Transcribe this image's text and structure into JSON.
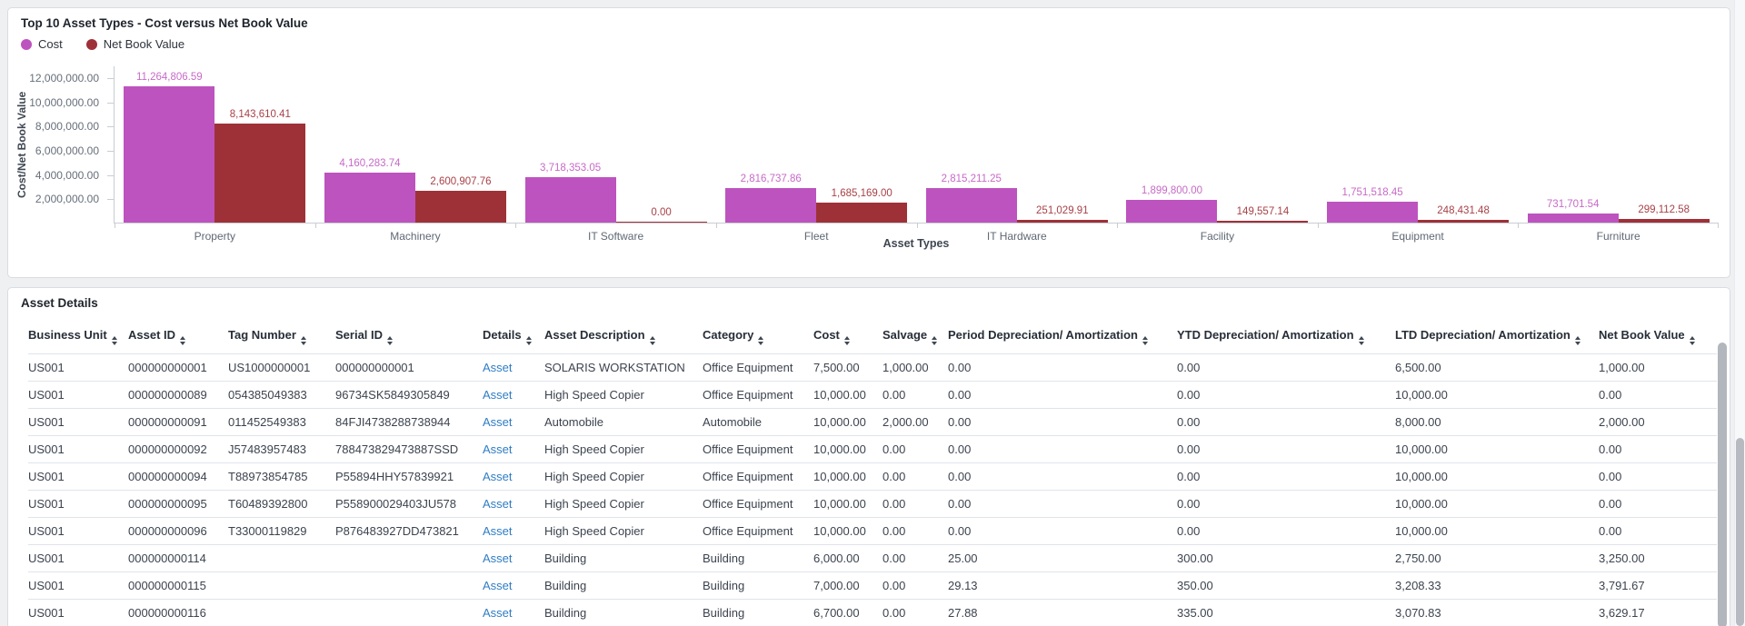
{
  "chart_data": {
    "type": "bar",
    "title": "Top 10 Asset Types - Cost versus Net Book Value",
    "xlabel": "Asset Types",
    "ylabel": "Cost/Net Book Value",
    "categories": [
      "Property",
      "Machinery",
      "IT Software",
      "Fleet",
      "IT Hardware",
      "Facility",
      "Equipment",
      "Furniture"
    ],
    "series": [
      {
        "name": "Cost",
        "color": "#bd53be",
        "label_color": "#c76ac7",
        "values": [
          11264806.59,
          4160283.74,
          3718353.05,
          2816737.86,
          2815211.25,
          1899800.0,
          1751518.45,
          731701.54
        ],
        "labels": [
          "11,264,806.59",
          "4,160,283.74",
          "3,718,353.05",
          "2,816,737.86",
          "2,815,211.25",
          "1,899,800.00",
          "1,751,518.45",
          "731,701.54"
        ]
      },
      {
        "name": "Net Book Value",
        "color": "#9e3138",
        "label_color": "#a84147",
        "values": [
          8143610.41,
          2600907.76,
          0.0,
          1685169.0,
          251029.91,
          149557.14,
          248431.48,
          299112.58
        ],
        "labels": [
          "8,143,610.41",
          "2,600,907.76",
          "0.00",
          "1,685,169.00",
          "251,029.91",
          "149,557.14",
          "248,431.48",
          "299,112.58"
        ]
      }
    ],
    "ylim": [
      0,
      12000000
    ],
    "yticks": [
      2000000,
      4000000,
      6000000,
      8000000,
      10000000,
      12000000
    ],
    "ytick_labels": [
      "2,000,000.00",
      "4,000,000.00",
      "6,000,000.00",
      "8,000,000.00",
      "10,000,000.00",
      "12,000,000.00"
    ],
    "grid": false,
    "legend_position": "top-left"
  },
  "table": {
    "title": "Asset Details",
    "columns": [
      "Business Unit",
      "Asset ID",
      "Tag Number",
      "Serial ID",
      "Details",
      "Asset Description",
      "Category",
      "Cost",
      "Salvage",
      "Period Depreciation/ Amortization",
      "YTD Depreciation/ Amortization",
      "LTD Depreciation/ Amortization",
      "Net Book Value"
    ],
    "rows": [
      [
        "US001",
        "000000000001",
        "US1000000001",
        "000000000001",
        "Asset",
        "SOLARIS WORKSTATION",
        "Office Equipment",
        "7,500.00",
        "1,000.00",
        "0.00",
        "0.00",
        "6,500.00",
        "1,000.00"
      ],
      [
        "US001",
        "000000000089",
        "054385049383",
        "96734SK5849305849",
        "Asset",
        "High Speed Copier",
        "Office Equipment",
        "10,000.00",
        "0.00",
        "0.00",
        "0.00",
        "10,000.00",
        "0.00"
      ],
      [
        "US001",
        "000000000091",
        "011452549383",
        "84FJI4738288738944",
        "Asset",
        "Automobile",
        "Automobile",
        "10,000.00",
        "2,000.00",
        "0.00",
        "0.00",
        "8,000.00",
        "2,000.00"
      ],
      [
        "US001",
        "000000000092",
        "J57483957483",
        "788473829473887SSD",
        "Asset",
        "High Speed Copier",
        "Office Equipment",
        "10,000.00",
        "0.00",
        "0.00",
        "0.00",
        "10,000.00",
        "0.00"
      ],
      [
        "US001",
        "000000000094",
        "T88973854785",
        "P55894HHY57839921",
        "Asset",
        "High Speed Copier",
        "Office Equipment",
        "10,000.00",
        "0.00",
        "0.00",
        "0.00",
        "10,000.00",
        "0.00"
      ],
      [
        "US001",
        "000000000095",
        "T60489392800",
        "P558900029403JU578",
        "Asset",
        "High Speed Copier",
        "Office Equipment",
        "10,000.00",
        "0.00",
        "0.00",
        "0.00",
        "10,000.00",
        "0.00"
      ],
      [
        "US001",
        "000000000096",
        "T33000119829",
        "P876483927DD473821",
        "Asset",
        "High Speed Copier",
        "Office Equipment",
        "10,000.00",
        "0.00",
        "0.00",
        "0.00",
        "10,000.00",
        "0.00"
      ],
      [
        "US001",
        "000000000114",
        "",
        "",
        "Asset",
        "Building",
        "Building",
        "6,000.00",
        "0.00",
        "25.00",
        "300.00",
        "2,750.00",
        "3,250.00"
      ],
      [
        "US001",
        "000000000115",
        "",
        "",
        "Asset",
        "Building",
        "Building",
        "7,000.00",
        "0.00",
        "29.13",
        "350.00",
        "3,208.33",
        "3,791.67"
      ],
      [
        "US001",
        "000000000116",
        "",
        "",
        "Asset",
        "Building",
        "Building",
        "6,700.00",
        "0.00",
        "27.88",
        "335.00",
        "3,070.83",
        "3,629.17"
      ]
    ]
  }
}
